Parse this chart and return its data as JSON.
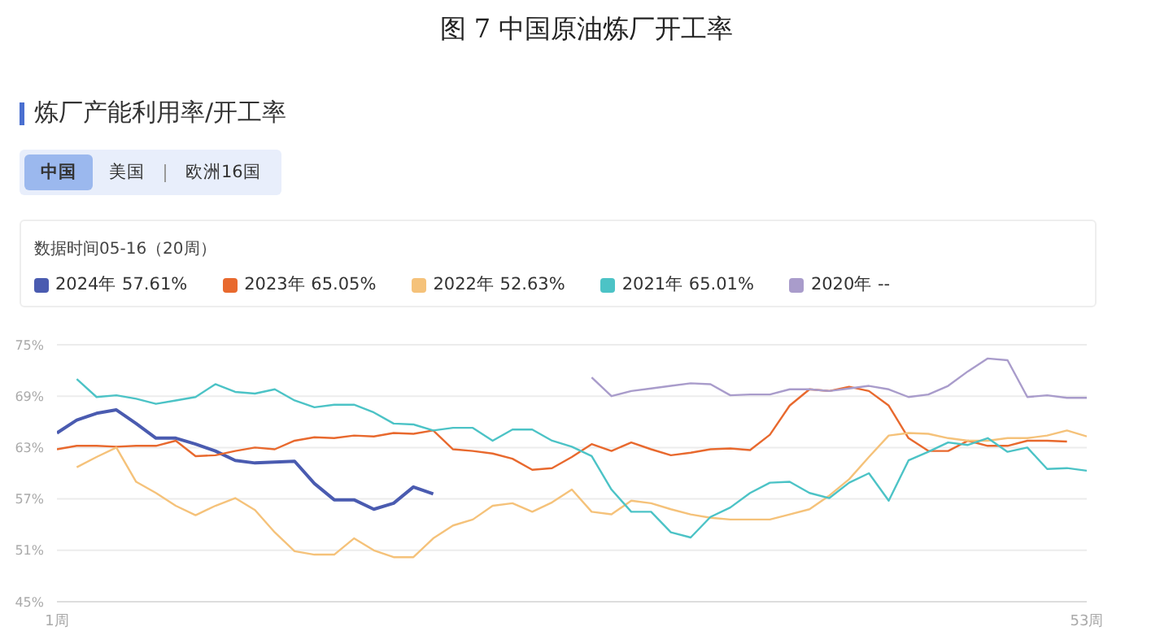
{
  "chart_data": {
    "type": "line",
    "title": "图 7  中国原油炼厂开工率",
    "subtitle": "炼厂产能利用率/开工率",
    "annotations": [
      "中国",
      "美国",
      "欧洲16国",
      "数据时间05-16（20周）"
    ],
    "x": [
      1,
      2,
      3,
      4,
      5,
      6,
      7,
      8,
      9,
      10,
      11,
      12,
      13,
      14,
      15,
      16,
      17,
      18,
      19,
      20,
      21,
      22,
      23,
      24,
      25,
      26,
      27,
      28,
      29,
      30,
      31,
      32,
      33,
      34,
      35,
      36,
      37,
      38,
      39,
      40,
      41,
      42,
      43,
      44,
      45,
      46,
      47,
      48,
      49,
      50,
      51,
      52,
      53
    ],
    "xlim": [
      1,
      53
    ],
    "xticks": [
      {
        "value": 1,
        "label": "1周"
      },
      {
        "value": 53,
        "label": "53周"
      }
    ],
    "ylim": [
      45,
      75
    ],
    "yticks": [
      {
        "value": 45,
        "label": "45%"
      },
      {
        "value": 51,
        "label": "51%"
      },
      {
        "value": 57,
        "label": "57%"
      },
      {
        "value": 63,
        "label": "63%"
      },
      {
        "value": 69,
        "label": "69%"
      },
      {
        "value": 75,
        "label": "75%"
      }
    ],
    "grid": "y",
    "legend": "top",
    "marker": "none",
    "line_style": "solid",
    "series": [
      {
        "name": "2024年 57.61%",
        "color": "#4a5bb0",
        "values": [
          64.7,
          66.2,
          67.0,
          67.4,
          65.8,
          64.1,
          64.1,
          63.4,
          62.6,
          61.5,
          61.2,
          61.3,
          61.4,
          58.8,
          56.9,
          56.9,
          55.8,
          56.5,
          58.4,
          57.6,
          null,
          null,
          null,
          null,
          null,
          null,
          null,
          null,
          null,
          null,
          null,
          null,
          null,
          null,
          null,
          null,
          null,
          null,
          null,
          null,
          null,
          null,
          null,
          null,
          null,
          null,
          null,
          null,
          null,
          null,
          null,
          null,
          null
        ]
      },
      {
        "name": "2023年 65.05%",
        "color": "#e8692e",
        "values": [
          62.8,
          63.2,
          63.2,
          63.1,
          63.2,
          63.2,
          63.8,
          62.0,
          62.1,
          62.6,
          63.0,
          62.8,
          63.8,
          64.2,
          64.1,
          64.4,
          64.3,
          64.7,
          64.6,
          65.0,
          62.8,
          62.6,
          62.3,
          61.7,
          60.4,
          60.6,
          61.9,
          63.4,
          62.6,
          63.6,
          62.8,
          62.1,
          62.4,
          62.8,
          62.9,
          62.7,
          64.5,
          67.9,
          69.8,
          69.6,
          70.1,
          69.6,
          67.9,
          64.1,
          62.6,
          62.6,
          63.8,
          63.2,
          63.2,
          63.8,
          63.8,
          63.7,
          null
        ]
      },
      {
        "name": "2022年 52.63%",
        "color": "#f5c27a",
        "values": [
          null,
          60.7,
          61.9,
          63.0,
          59.0,
          57.7,
          56.2,
          55.1,
          56.2,
          57.1,
          55.7,
          53.1,
          50.9,
          50.5,
          50.5,
          52.4,
          51.0,
          50.2,
          50.2,
          52.4,
          53.9,
          54.6,
          56.2,
          56.5,
          55.5,
          56.6,
          58.1,
          55.5,
          55.2,
          56.8,
          56.5,
          55.8,
          55.2,
          54.8,
          54.6,
          54.6,
          54.6,
          55.2,
          55.8,
          57.4,
          59.3,
          61.9,
          64.4,
          64.7,
          64.6,
          64.1,
          63.8,
          63.8,
          64.1,
          64.1,
          64.4,
          65.0,
          64.3
        ]
      },
      {
        "name": "2021年 65.01%",
        "color": "#4cc3c6",
        "values": [
          null,
          71.0,
          68.9,
          69.1,
          68.7,
          68.1,
          68.5,
          68.9,
          70.4,
          69.5,
          69.3,
          69.8,
          68.5,
          67.7,
          68.0,
          68.0,
          67.1,
          65.8,
          65.7,
          65.0,
          65.3,
          65.3,
          63.8,
          65.1,
          65.1,
          63.8,
          63.1,
          62.0,
          58.1,
          55.5,
          55.5,
          53.1,
          52.5,
          54.9,
          56.0,
          57.7,
          58.9,
          59.0,
          57.7,
          57.1,
          58.9,
          60.0,
          56.8,
          61.5,
          62.5,
          63.6,
          63.3,
          64.1,
          62.5,
          63.0,
          60.5,
          60.6,
          60.3
        ]
      },
      {
        "name": "2020年 --",
        "color": "#a99ccb",
        "values": [
          null,
          null,
          null,
          null,
          null,
          null,
          null,
          null,
          null,
          null,
          null,
          null,
          null,
          null,
          null,
          null,
          null,
          null,
          null,
          null,
          null,
          null,
          null,
          null,
          null,
          null,
          null,
          71.2,
          69.0,
          69.6,
          69.9,
          70.2,
          70.5,
          70.4,
          69.1,
          69.2,
          69.2,
          69.8,
          69.8,
          69.6,
          69.9,
          70.2,
          69.8,
          68.9,
          69.2,
          70.2,
          71.9,
          73.4,
          73.2,
          68.9,
          69.1,
          68.8,
          68.8
        ]
      }
    ]
  }
}
